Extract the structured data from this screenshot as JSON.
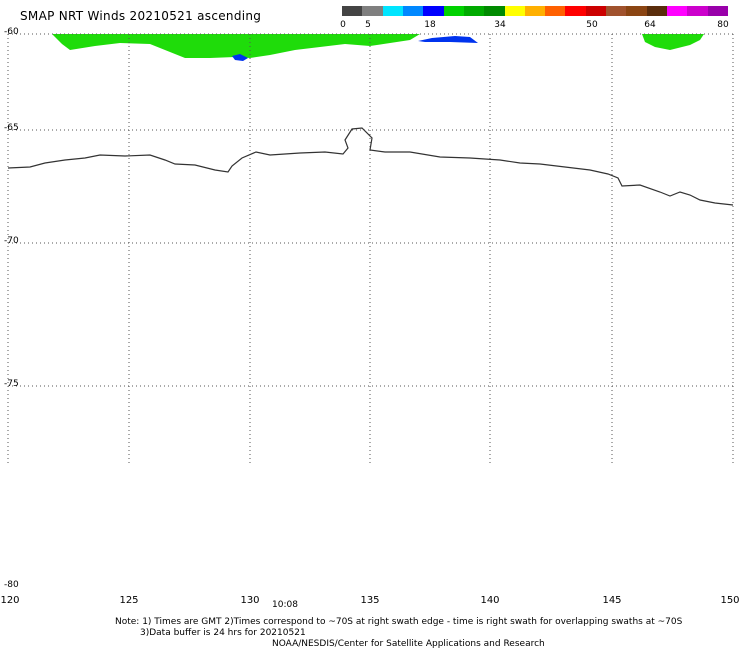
{
  "header": {
    "title": "SMAP NRT Winds 20210521 ascending"
  },
  "color_scale": {
    "labels": [
      "0",
      "5",
      "18",
      "34",
      "50",
      "64",
      "80"
    ],
    "colors": [
      "#444444",
      "#7f7f7f",
      "#00e5ff",
      "#0088ff",
      "#0000ff",
      "#00d200",
      "#00aa00",
      "#008a00",
      "#ffff00",
      "#ffb000",
      "#ff6000",
      "#ff0000",
      "#cc0000",
      "#a0522d",
      "#8b4513",
      "#5a2d0c",
      "#ff00ff",
      "#cc00cc",
      "#9900aa"
    ]
  },
  "axes": {
    "lat_labels": [
      "-60",
      "-65",
      "-70",
      "-75",
      "-80"
    ],
    "lon_labels": [
      "120",
      "125",
      "130",
      "135",
      "140",
      "145",
      "150"
    ]
  },
  "swath_time": "10:08",
  "notes": {
    "line1": "Note: 1) Times are GMT 2)Times correspond to ~70S at right swath edge - time is right swath for overlapping swaths at ~70S",
    "line2": "3)Data buffer is 24 hrs for 20210521",
    "line3": "NOAA/NESDIS/Center for Satellite Applications and Research"
  }
}
